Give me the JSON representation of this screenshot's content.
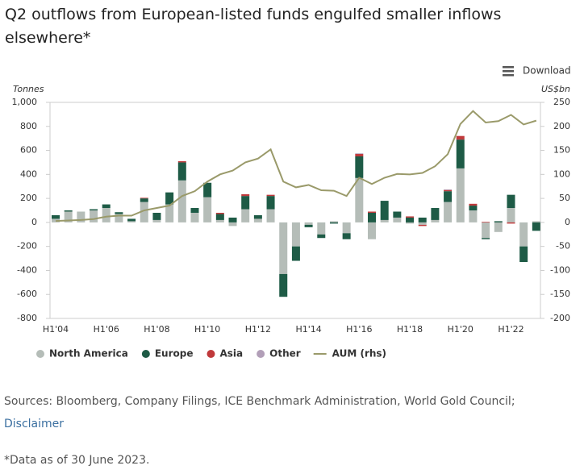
{
  "chart_data": {
    "type": "bar_line",
    "title": "Q2 outflows from European-listed funds engulfed smaller inflows elsewhere*",
    "download": "Download",
    "y_label": "Tonnes",
    "y2_label": "US$bn",
    "categories": [
      "H1'04",
      null,
      null,
      null,
      "H1'06",
      null,
      null,
      null,
      "H1'08",
      null,
      null,
      null,
      "H1'10",
      null,
      null,
      null,
      "H1'12",
      null,
      null,
      null,
      "H1'14",
      null,
      null,
      null,
      "H1'16",
      null,
      null,
      null,
      "H1'18",
      null,
      null,
      null,
      "H1'20",
      null,
      null,
      null,
      "H1'22",
      null,
      null
    ],
    "series": [
      {
        "name": "North America",
        "color": "#b5bdb8",
        "values": [
          30,
          90,
          90,
          100,
          120,
          70,
          10,
          170,
          20,
          150,
          350,
          80,
          210,
          20,
          -30,
          110,
          30,
          110,
          -430,
          -200,
          -20,
          -100,
          10,
          -90,
          370,
          -140,
          20,
          40,
          -10,
          -20,
          20,
          170,
          450,
          100,
          -130,
          -80,
          120,
          -200,
          10
        ]
      },
      {
        "name": "Europe",
        "color": "#1e5b46",
        "values": [
          30,
          10,
          0,
          10,
          30,
          15,
          20,
          30,
          60,
          100,
          150,
          40,
          120,
          50,
          40,
          110,
          30,
          110,
          -190,
          -120,
          -20,
          -30,
          -10,
          -50,
          180,
          80,
          160,
          50,
          40,
          40,
          100,
          90,
          240,
          40,
          -10,
          10,
          110,
          -130,
          -70
        ]
      },
      {
        "name": "Asia",
        "color": "#c0393b",
        "values": [
          0,
          0,
          0,
          0,
          0,
          0,
          0,
          5,
          0,
          0,
          10,
          0,
          0,
          10,
          0,
          15,
          0,
          10,
          0,
          0,
          0,
          0,
          0,
          0,
          20,
          10,
          0,
          0,
          10,
          -10,
          0,
          10,
          30,
          15,
          5,
          0,
          -10,
          0,
          0
        ]
      },
      {
        "name": "Other",
        "color": "#b29fb8",
        "values": [
          0,
          0,
          0,
          0,
          0,
          0,
          0,
          0,
          0,
          0,
          0,
          0,
          0,
          0,
          0,
          0,
          0,
          0,
          0,
          0,
          0,
          0,
          0,
          0,
          5,
          0,
          0,
          0,
          0,
          0,
          0,
          5,
          0,
          0,
          0,
          0,
          0,
          0,
          0
        ]
      },
      {
        "name": "AUM (rhs)",
        "color": "#9a9a6a",
        "axis": "y2",
        "type": "line",
        "values": [
          3,
          4,
          5,
          7,
          12,
          14,
          14,
          25,
          30,
          35,
          55,
          65,
          85,
          100,
          108,
          125,
          133,
          152,
          85,
          73,
          78,
          67,
          66,
          55,
          93,
          80,
          93,
          101,
          100,
          103,
          117,
          142,
          205,
          232,
          208,
          211,
          224,
          204,
          212
        ]
      }
    ],
    "ylim": [
      -800,
      1000
    ],
    "yticks": [
      {
        "value": 1000,
        "label": "1,000"
      },
      800,
      600,
      400,
      200,
      0,
      -200,
      -400,
      -600,
      -800
    ],
    "y2lim": [
      -200,
      250
    ],
    "y2ticks": [
      250,
      200,
      150,
      100,
      50,
      0,
      -50,
      -100,
      -150,
      -200
    ],
    "grid": false,
    "legend": "bottom"
  },
  "sources": "Sources: Bloomberg, Company Filings, ICE Benchmark Administration, World Gold Council;",
  "disclaimer": "Disclaimer",
  "footnote": "*Data as of 30 June 2023."
}
